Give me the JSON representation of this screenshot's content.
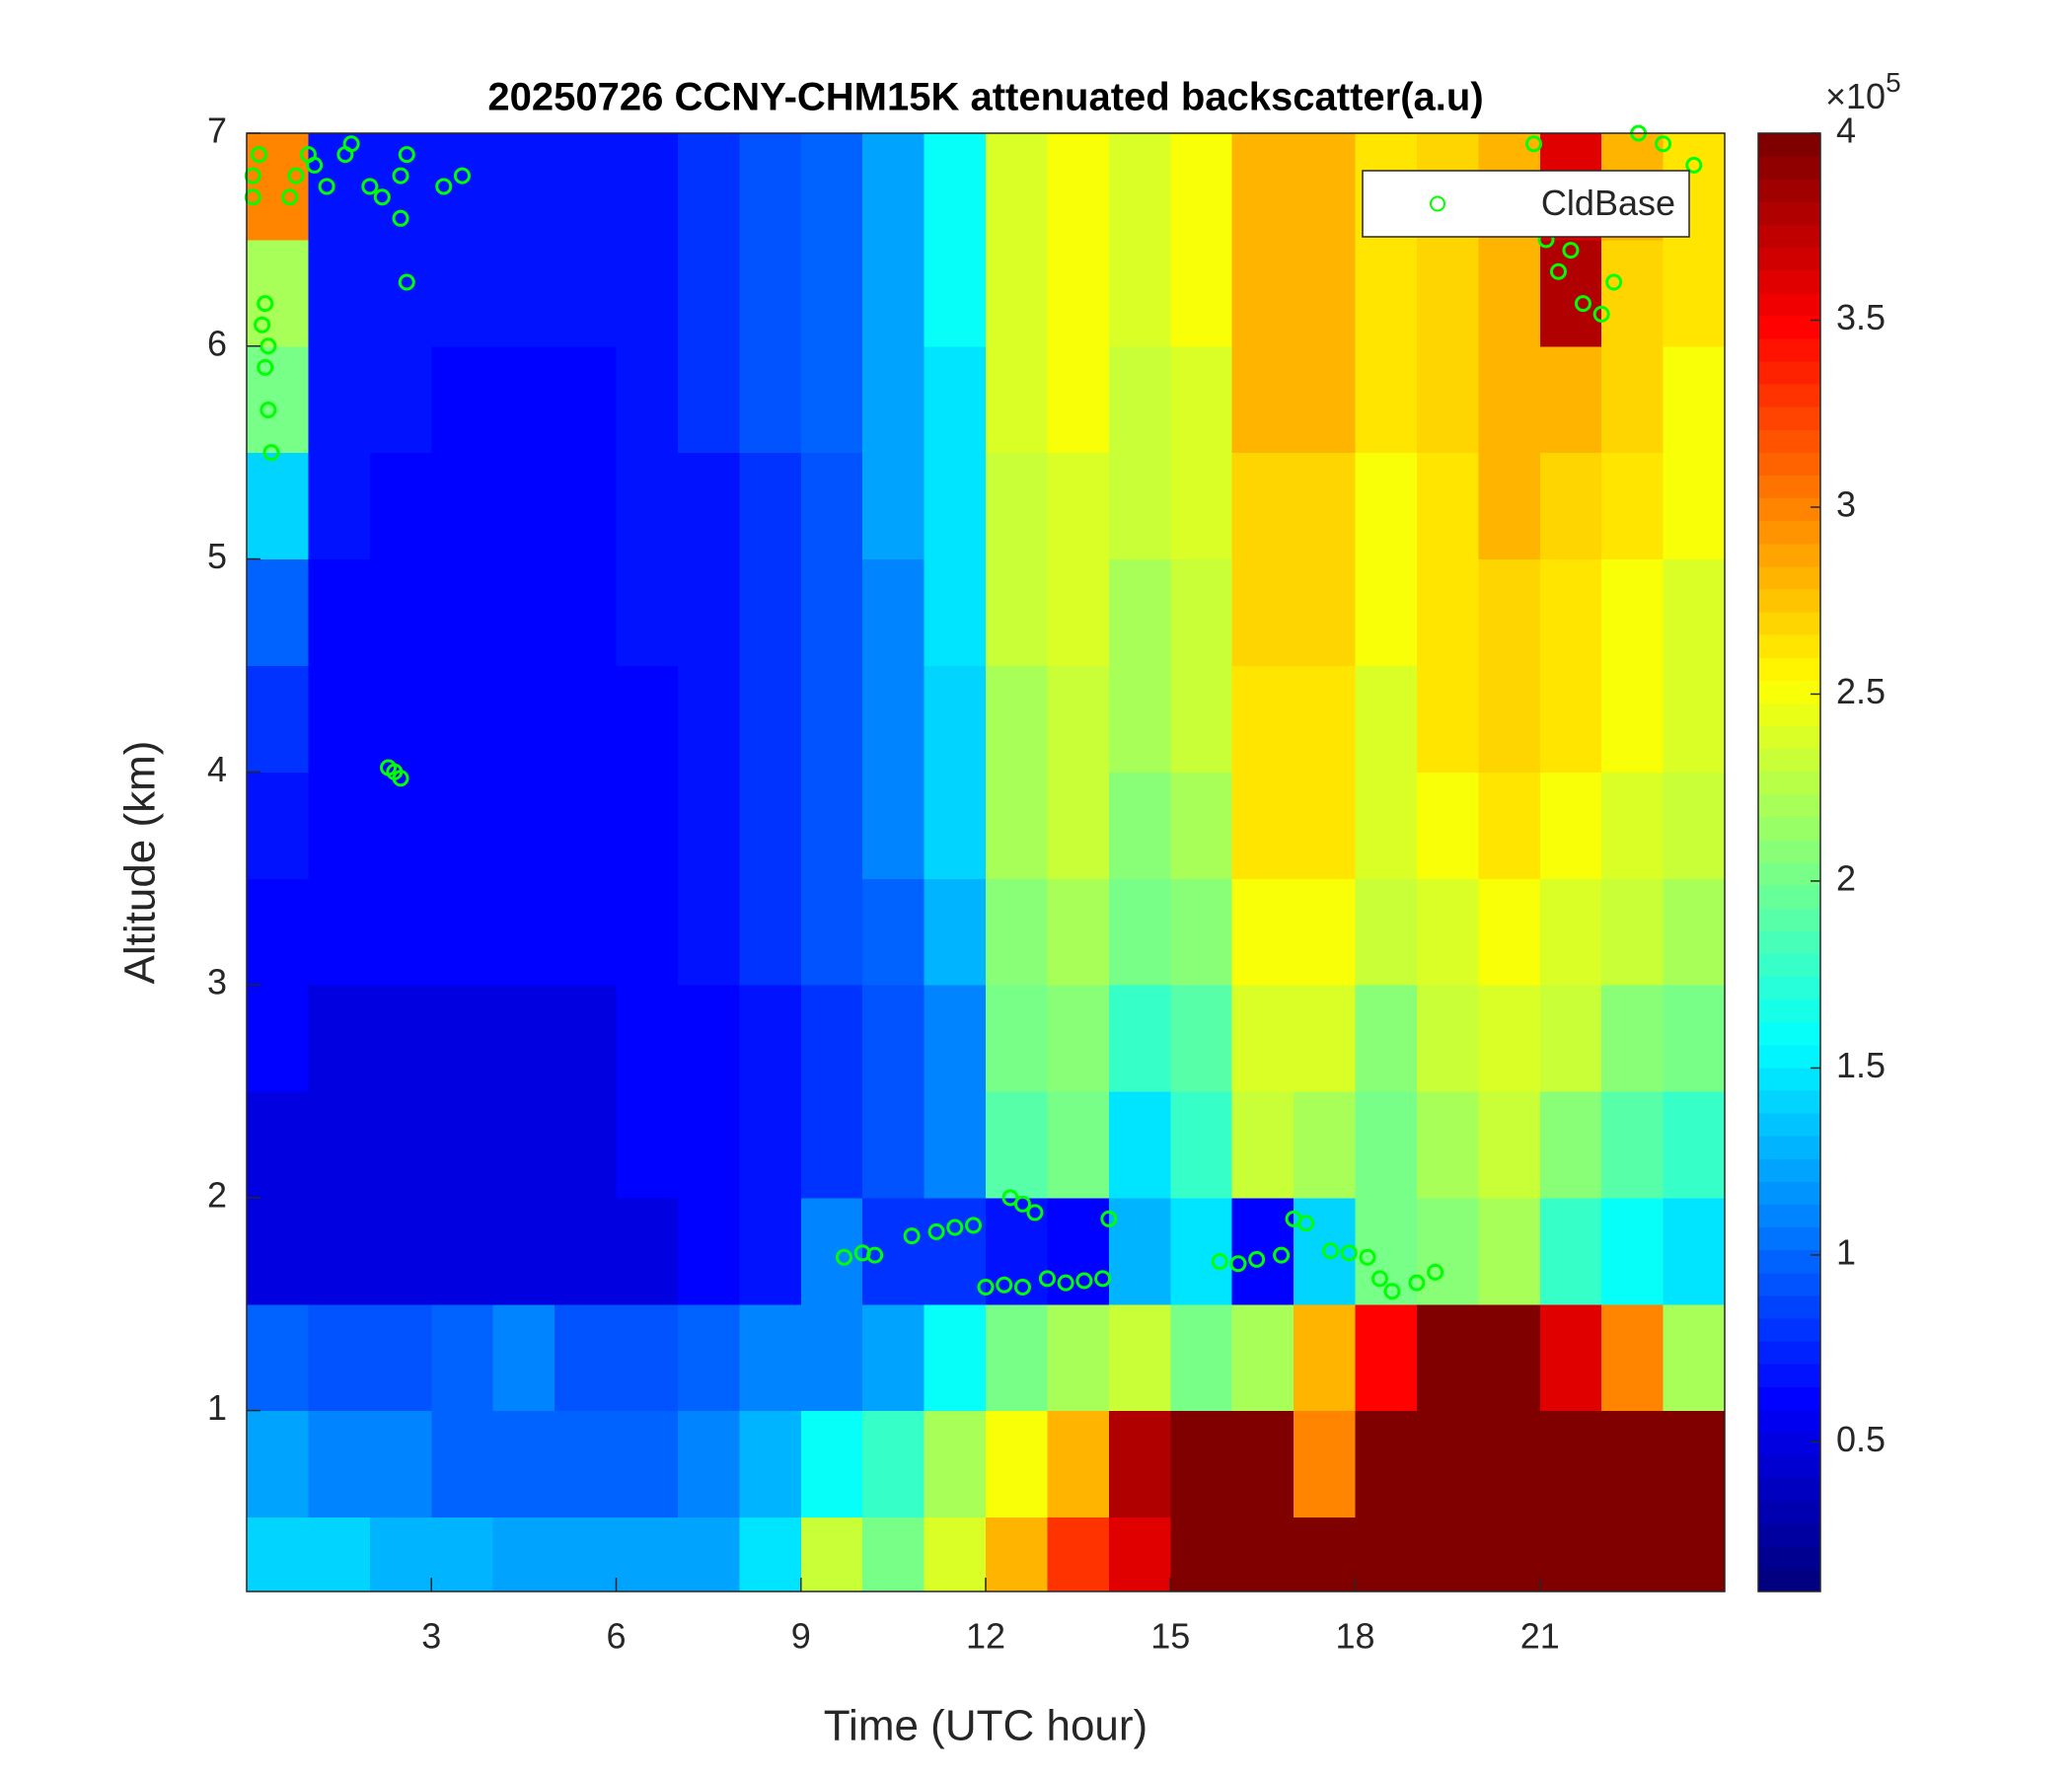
{
  "chart_data": {
    "type": "heatmap",
    "title": "20250726 CCNY-CHM15K attenuated backscatter(a.u)",
    "x_label": "Time (UTC hour)",
    "y_label": "Altitude (km)",
    "xlim": [
      0,
      24
    ],
    "xticks": [
      3,
      6,
      9,
      12,
      15,
      18,
      21
    ],
    "ylim": [
      0.15,
      7
    ],
    "yticks": [
      1,
      2,
      3,
      4,
      5,
      6,
      7
    ],
    "xbins": [
      0,
      1,
      2,
      3,
      4,
      5,
      6,
      7,
      8,
      9,
      10,
      11,
      12,
      13,
      14,
      15,
      16,
      17,
      18,
      19,
      20,
      21,
      22,
      23,
      24
    ],
    "ybins": [
      0.15,
      0.5,
      1,
      1.5,
      2,
      2.5,
      3,
      3.5,
      4,
      4.5,
      5,
      5.5,
      6,
      6.5,
      7
    ],
    "z": [
      [
        1.4,
        1.4,
        1.3,
        1.3,
        1.2,
        1.2,
        1.2,
        1.2,
        1.5,
        2.3,
        2.0,
        2.4,
        2.8,
        3.3,
        3.6,
        4,
        4,
        4,
        4,
        4,
        4,
        4,
        4,
        4
      ],
      [
        1.2,
        1.1,
        1.1,
        1.0,
        1.0,
        1.0,
        1.0,
        1.1,
        1.3,
        1.6,
        1.8,
        2.2,
        2.5,
        2.8,
        3.8,
        4,
        4,
        3.0,
        4,
        4,
        4,
        4,
        4,
        4
      ],
      [
        1.0,
        0.9,
        0.9,
        1.0,
        1.1,
        0.9,
        0.9,
        1.0,
        1.1,
        1.1,
        1.2,
        1.6,
        2.0,
        2.2,
        2.3,
        2.0,
        2.2,
        2.8,
        3.5,
        4,
        4,
        3.6,
        3.0,
        2.2
      ],
      [
        0.5,
        0.5,
        0.5,
        0.5,
        0.5,
        0.5,
        0.5,
        0.6,
        0.7,
        1.1,
        0.8,
        0.8,
        0.7,
        0.6,
        1.3,
        1.5,
        0.6,
        1.4,
        2.0,
        2.1,
        2.2,
        1.8,
        1.6,
        1.5
      ],
      [
        0.5,
        0.5,
        0.5,
        0.5,
        0.5,
        0.5,
        0.6,
        0.6,
        0.7,
        0.8,
        0.9,
        1.1,
        1.9,
        2.0,
        1.5,
        1.8,
        2.3,
        2.2,
        2.0,
        2.2,
        2.3,
        2.1,
        1.9,
        1.8
      ],
      [
        0.6,
        0.5,
        0.5,
        0.5,
        0.5,
        0.5,
        0.6,
        0.6,
        0.7,
        0.8,
        0.9,
        1.1,
        2.0,
        2.1,
        1.8,
        1.9,
        2.4,
        2.4,
        2.1,
        2.3,
        2.4,
        2.3,
        2.1,
        2.0
      ],
      [
        0.6,
        0.6,
        0.6,
        0.6,
        0.6,
        0.6,
        0.6,
        0.7,
        0.8,
        0.9,
        1.0,
        1.3,
        2.1,
        2.2,
        2.0,
        2.1,
        2.5,
        2.5,
        2.3,
        2.4,
        2.5,
        2.4,
        2.3,
        2.2
      ],
      [
        0.7,
        0.6,
        0.6,
        0.6,
        0.6,
        0.6,
        0.6,
        0.7,
        0.8,
        0.9,
        1.1,
        1.4,
        2.2,
        2.3,
        2.1,
        2.2,
        2.6,
        2.6,
        2.4,
        2.5,
        2.6,
        2.5,
        2.4,
        2.3
      ],
      [
        0.8,
        0.6,
        0.6,
        0.6,
        0.6,
        0.6,
        0.6,
        0.7,
        0.8,
        0.9,
        1.1,
        1.4,
        2.2,
        2.3,
        2.2,
        2.3,
        2.6,
        2.6,
        2.4,
        2.6,
        2.7,
        2.6,
        2.5,
        2.4
      ],
      [
        1.0,
        0.6,
        0.6,
        0.6,
        0.6,
        0.6,
        0.7,
        0.7,
        0.8,
        0.9,
        1.1,
        1.5,
        2.3,
        2.4,
        2.2,
        2.3,
        2.7,
        2.7,
        2.5,
        2.6,
        2.7,
        2.6,
        2.5,
        2.4
      ],
      [
        1.4,
        0.7,
        0.6,
        0.6,
        0.6,
        0.6,
        0.7,
        0.7,
        0.8,
        0.9,
        1.2,
        1.5,
        2.3,
        2.4,
        2.3,
        2.4,
        2.7,
        2.7,
        2.5,
        2.6,
        2.8,
        2.7,
        2.6,
        2.5
      ],
      [
        2.0,
        0.7,
        0.7,
        0.6,
        0.6,
        0.6,
        0.7,
        0.8,
        0.9,
        1.0,
        1.2,
        1.5,
        2.4,
        2.5,
        2.3,
        2.4,
        2.8,
        2.8,
        2.6,
        2.7,
        2.8,
        2.8,
        2.7,
        2.5
      ],
      [
        2.2,
        0.7,
        0.7,
        0.7,
        0.7,
        0.7,
        0.7,
        0.8,
        0.9,
        1.0,
        1.2,
        1.6,
        2.4,
        2.5,
        2.4,
        2.5,
        2.8,
        2.8,
        2.6,
        2.7,
        2.8,
        3.8,
        2.7,
        2.6
      ],
      [
        3.0,
        0.7,
        0.7,
        0.7,
        0.7,
        0.7,
        0.7,
        0.8,
        0.9,
        1.0,
        1.2,
        1.6,
        2.4,
        2.5,
        2.4,
        2.5,
        2.8,
        2.8,
        2.6,
        2.7,
        2.8,
        3.6,
        2.8,
        2.6
      ]
    ],
    "colormap": "jet",
    "clim": [
      0.1,
      4
    ],
    "cticks": [
      0.5,
      1,
      1.5,
      2,
      2.5,
      3,
      3.5,
      4
    ],
    "colorbar_scale_base": "×10",
    "colorbar_scale_exponent": "5",
    "legend": "upper right",
    "overlay": {
      "type": "scatter",
      "name": "CldBase",
      "color": "#00ff00",
      "x": [
        0.1,
        0.1,
        0.2,
        0.3,
        0.3,
        0.35,
        0.4,
        0.35,
        0.25,
        0.7,
        0.8,
        1.0,
        1.1,
        1.3,
        1.6,
        1.7,
        2.0,
        2.2,
        2.5,
        2.5,
        2.6,
        2.6,
        3.2,
        3.5,
        2.3,
        2.4,
        2.5,
        9.7,
        10.0,
        10.2,
        10.8,
        11.2,
        11.5,
        11.8,
        12.0,
        12.3,
        12.6,
        12.4,
        12.6,
        12.8,
        13.0,
        13.3,
        13.6,
        13.9,
        14.0,
        15.8,
        16.1,
        16.4,
        16.8,
        17.0,
        17.2,
        17.6,
        17.9,
        18.2,
        18.4,
        18.6,
        19.0,
        19.3,
        20.9,
        21.1,
        21.3,
        21.5,
        21.7,
        22.0,
        22.2,
        22.6,
        23.0,
        23.5
      ],
      "y": [
        6.7,
        6.8,
        6.9,
        6.2,
        5.9,
        5.7,
        5.5,
        6.0,
        6.1,
        6.7,
        6.8,
        6.9,
        6.85,
        6.75,
        6.9,
        6.95,
        6.75,
        6.7,
        6.8,
        6.6,
        6.3,
        6.9,
        6.75,
        6.8,
        4.02,
        4.0,
        3.97,
        1.72,
        1.74,
        1.73,
        1.82,
        1.84,
        1.86,
        1.87,
        1.58,
        1.59,
        1.58,
        2.0,
        1.97,
        1.93,
        1.62,
        1.6,
        1.61,
        1.62,
        1.9,
        1.7,
        1.69,
        1.71,
        1.73,
        1.9,
        1.88,
        1.75,
        1.74,
        1.72,
        1.62,
        1.56,
        1.6,
        1.65,
        6.95,
        6.5,
        6.35,
        6.45,
        6.2,
        6.15,
        6.3,
        7.0,
        6.95,
        6.85
      ]
    }
  }
}
